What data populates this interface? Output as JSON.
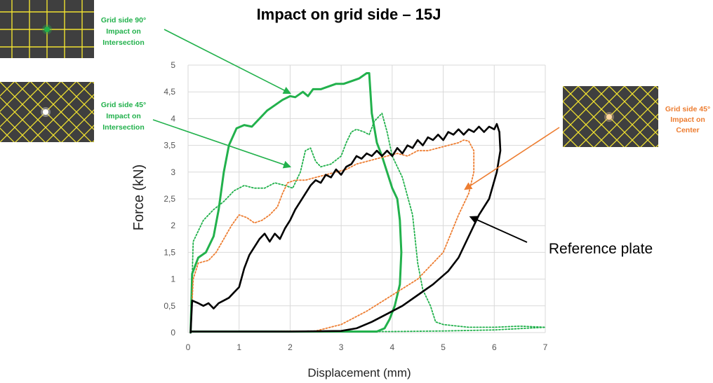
{
  "chart_data": {
    "type": "line",
    "title": "Impact on grid side – 15J",
    "xlabel": "Displacement (mm)",
    "ylabel": "Force (kN)",
    "xlim": [
      0,
      7
    ],
    "ylim": [
      0,
      5
    ],
    "xticks": [
      "0",
      "1",
      "2",
      "3",
      "4",
      "5",
      "6",
      "7"
    ],
    "yticks": [
      "0",
      "0,5",
      "1",
      "1,5",
      "2",
      "2,5",
      "3",
      "3,5",
      "4",
      "4,5",
      "5"
    ],
    "grid": true,
    "series": [
      {
        "name": "Grid side 90° Impact on Intersection",
        "color": "#22b14c",
        "style": "solid",
        "points": [
          [
            0.05,
            0
          ],
          [
            0.08,
            1.1
          ],
          [
            0.2,
            1.4
          ],
          [
            0.35,
            1.5
          ],
          [
            0.5,
            1.8
          ],
          [
            0.6,
            2.3
          ],
          [
            0.7,
            3.0
          ],
          [
            0.8,
            3.5
          ],
          [
            0.95,
            3.82
          ],
          [
            1.1,
            3.88
          ],
          [
            1.25,
            3.85
          ],
          [
            1.4,
            4.0
          ],
          [
            1.55,
            4.15
          ],
          [
            1.7,
            4.25
          ],
          [
            1.85,
            4.35
          ],
          [
            2.0,
            4.42
          ],
          [
            2.1,
            4.4
          ],
          [
            2.25,
            4.5
          ],
          [
            2.35,
            4.42
          ],
          [
            2.45,
            4.55
          ],
          [
            2.6,
            4.55
          ],
          [
            2.75,
            4.6
          ],
          [
            2.9,
            4.65
          ],
          [
            3.05,
            4.65
          ],
          [
            3.2,
            4.7
          ],
          [
            3.35,
            4.75
          ],
          [
            3.5,
            4.85
          ],
          [
            3.55,
            4.85
          ],
          [
            3.6,
            4.1
          ],
          [
            3.7,
            3.55
          ],
          [
            3.8,
            3.3
          ],
          [
            3.9,
            3.0
          ],
          [
            4.0,
            2.7
          ],
          [
            4.1,
            2.5
          ],
          [
            4.15,
            2.1
          ],
          [
            4.18,
            1.5
          ],
          [
            4.15,
            0.9
          ],
          [
            4.05,
            0.5
          ],
          [
            3.95,
            0.25
          ],
          [
            3.85,
            0.08
          ],
          [
            3.7,
            0.02
          ],
          [
            3.4,
            0.02
          ],
          [
            2.0,
            0.02
          ],
          [
            0.5,
            0.02
          ],
          [
            0.05,
            0.02
          ]
        ]
      },
      {
        "name": "Grid side 45° Impact on Intersection",
        "color": "#22b14c",
        "style": "dotted",
        "points": [
          [
            0.05,
            0
          ],
          [
            0.1,
            1.7
          ],
          [
            0.3,
            2.1
          ],
          [
            0.5,
            2.3
          ],
          [
            0.7,
            2.45
          ],
          [
            0.9,
            2.65
          ],
          [
            1.1,
            2.75
          ],
          [
            1.3,
            2.7
          ],
          [
            1.5,
            2.7
          ],
          [
            1.7,
            2.8
          ],
          [
            1.9,
            2.75
          ],
          [
            2.05,
            2.7
          ],
          [
            2.2,
            3.0
          ],
          [
            2.3,
            3.4
          ],
          [
            2.4,
            3.45
          ],
          [
            2.5,
            3.2
          ],
          [
            2.6,
            3.1
          ],
          [
            2.8,
            3.15
          ],
          [
            3.0,
            3.3
          ],
          [
            3.1,
            3.55
          ],
          [
            3.2,
            3.75
          ],
          [
            3.3,
            3.8
          ],
          [
            3.45,
            3.75
          ],
          [
            3.55,
            3.7
          ],
          [
            3.65,
            3.95
          ],
          [
            3.8,
            4.1
          ],
          [
            3.9,
            3.75
          ],
          [
            4.0,
            3.3
          ],
          [
            4.2,
            2.9
          ],
          [
            4.4,
            2.2
          ],
          [
            4.5,
            1.3
          ],
          [
            4.6,
            0.8
          ],
          [
            4.75,
            0.5
          ],
          [
            4.85,
            0.2
          ],
          [
            5.0,
            0.15
          ],
          [
            5.5,
            0.1
          ],
          [
            6.0,
            0.1
          ],
          [
            6.5,
            0.12
          ],
          [
            7.0,
            0.1
          ],
          [
            6.0,
            0.05
          ],
          [
            5.0,
            0.03
          ],
          [
            4.0,
            0.02
          ],
          [
            3.0,
            0.02
          ],
          [
            2.0,
            0.02
          ],
          [
            1.0,
            0.02
          ],
          [
            0.05,
            0.02
          ]
        ]
      },
      {
        "name": "Grid side 45° Impact on Center",
        "color": "#ed7d31",
        "style": "dotted",
        "points": [
          [
            0.05,
            0
          ],
          [
            0.1,
            1.0
          ],
          [
            0.2,
            1.3
          ],
          [
            0.4,
            1.35
          ],
          [
            0.55,
            1.5
          ],
          [
            0.7,
            1.75
          ],
          [
            0.85,
            2.0
          ],
          [
            1.0,
            2.2
          ],
          [
            1.15,
            2.15
          ],
          [
            1.3,
            2.05
          ],
          [
            1.45,
            2.1
          ],
          [
            1.6,
            2.2
          ],
          [
            1.75,
            2.35
          ],
          [
            1.85,
            2.6
          ],
          [
            1.95,
            2.8
          ],
          [
            2.1,
            2.85
          ],
          [
            2.3,
            2.85
          ],
          [
            2.5,
            2.9
          ],
          [
            2.7,
            2.95
          ],
          [
            2.9,
            3.0
          ],
          [
            3.1,
            3.05
          ],
          [
            3.3,
            3.15
          ],
          [
            3.5,
            3.2
          ],
          [
            3.7,
            3.25
          ],
          [
            3.9,
            3.3
          ],
          [
            4.1,
            3.35
          ],
          [
            4.3,
            3.3
          ],
          [
            4.5,
            3.4
          ],
          [
            4.7,
            3.4
          ],
          [
            4.9,
            3.45
          ],
          [
            5.1,
            3.5
          ],
          [
            5.3,
            3.55
          ],
          [
            5.4,
            3.6
          ],
          [
            5.5,
            3.58
          ],
          [
            5.6,
            3.4
          ],
          [
            5.6,
            3.0
          ],
          [
            5.5,
            2.6
          ],
          [
            5.3,
            2.2
          ],
          [
            5.0,
            1.5
          ],
          [
            4.5,
            1.0
          ],
          [
            4.0,
            0.7
          ],
          [
            3.5,
            0.4
          ],
          [
            3.0,
            0.15
          ],
          [
            2.5,
            0.03
          ],
          [
            1.5,
            0.02
          ],
          [
            0.05,
            0.02
          ]
        ]
      },
      {
        "name": "Reference plate",
        "color": "#000000",
        "style": "solid",
        "points": [
          [
            0.05,
            0
          ],
          [
            0.08,
            0.6
          ],
          [
            0.2,
            0.55
          ],
          [
            0.3,
            0.5
          ],
          [
            0.4,
            0.55
          ],
          [
            0.5,
            0.45
          ],
          [
            0.6,
            0.55
          ],
          [
            0.7,
            0.6
          ],
          [
            0.8,
            0.65
          ],
          [
            0.9,
            0.75
          ],
          [
            1.0,
            0.85
          ],
          [
            1.1,
            1.2
          ],
          [
            1.2,
            1.45
          ],
          [
            1.3,
            1.6
          ],
          [
            1.4,
            1.75
          ],
          [
            1.5,
            1.85
          ],
          [
            1.6,
            1.7
          ],
          [
            1.7,
            1.85
          ],
          [
            1.8,
            1.75
          ],
          [
            1.9,
            1.95
          ],
          [
            2.0,
            2.1
          ],
          [
            2.1,
            2.3
          ],
          [
            2.2,
            2.45
          ],
          [
            2.3,
            2.6
          ],
          [
            2.4,
            2.75
          ],
          [
            2.5,
            2.85
          ],
          [
            2.6,
            2.8
          ],
          [
            2.7,
            2.95
          ],
          [
            2.8,
            2.9
          ],
          [
            2.9,
            3.05
          ],
          [
            3.0,
            2.95
          ],
          [
            3.1,
            3.1
          ],
          [
            3.2,
            3.15
          ],
          [
            3.3,
            3.3
          ],
          [
            3.4,
            3.25
          ],
          [
            3.5,
            3.35
          ],
          [
            3.6,
            3.3
          ],
          [
            3.7,
            3.4
          ],
          [
            3.8,
            3.3
          ],
          [
            3.9,
            3.4
          ],
          [
            4.0,
            3.3
          ],
          [
            4.1,
            3.45
          ],
          [
            4.2,
            3.35
          ],
          [
            4.3,
            3.5
          ],
          [
            4.4,
            3.45
          ],
          [
            4.5,
            3.6
          ],
          [
            4.6,
            3.5
          ],
          [
            4.7,
            3.65
          ],
          [
            4.8,
            3.6
          ],
          [
            4.9,
            3.7
          ],
          [
            5.0,
            3.6
          ],
          [
            5.1,
            3.75
          ],
          [
            5.2,
            3.7
          ],
          [
            5.3,
            3.8
          ],
          [
            5.4,
            3.7
          ],
          [
            5.5,
            3.8
          ],
          [
            5.6,
            3.75
          ],
          [
            5.7,
            3.85
          ],
          [
            5.8,
            3.75
          ],
          [
            5.9,
            3.85
          ],
          [
            6.0,
            3.8
          ],
          [
            6.05,
            3.9
          ],
          [
            6.1,
            3.75
          ],
          [
            6.12,
            3.4
          ],
          [
            6.05,
            3.0
          ],
          [
            5.9,
            2.5
          ],
          [
            5.7,
            2.2
          ],
          [
            5.5,
            1.8
          ],
          [
            5.3,
            1.4
          ],
          [
            5.1,
            1.15
          ],
          [
            4.8,
            0.9
          ],
          [
            4.5,
            0.7
          ],
          [
            4.2,
            0.5
          ],
          [
            3.9,
            0.35
          ],
          [
            3.6,
            0.2
          ],
          [
            3.3,
            0.08
          ],
          [
            3.0,
            0.03
          ],
          [
            2.0,
            0.02
          ],
          [
            1.0,
            0.02
          ],
          [
            0.05,
            0.02
          ]
        ]
      }
    ],
    "annotations": [
      {
        "key": "g90",
        "lines": [
          "Grid side 90°",
          "Impact on",
          "Intersection"
        ],
        "color": "#22b14c"
      },
      {
        "key": "g45i",
        "lines": [
          "Grid side 45°",
          "Impact on",
          "Intersection"
        ],
        "color": "#22b14c"
      },
      {
        "key": "g45c",
        "lines": [
          "Grid side 45°",
          "Impact on",
          "Center"
        ],
        "color": "#ed7d31"
      },
      {
        "key": "ref",
        "lines": [
          "Reference plate"
        ],
        "color": "#000000"
      }
    ]
  },
  "colors": {
    "grid_line": "#d9d9d9",
    "panel_bg": "#3f3f3f",
    "panel_grid": "#f0e130",
    "impact_green": "#22b14c",
    "impact_white": "#ffffff",
    "impact_orange": "#ffd7a0"
  },
  "images": [
    {
      "key": "g90",
      "pattern": "square-grid",
      "impact": "green-dot"
    },
    {
      "key": "g45i",
      "pattern": "diagonal-grid",
      "impact": "white-dot"
    },
    {
      "key": "g45c",
      "pattern": "diagonal-grid",
      "impact": "orange-dot"
    }
  ]
}
